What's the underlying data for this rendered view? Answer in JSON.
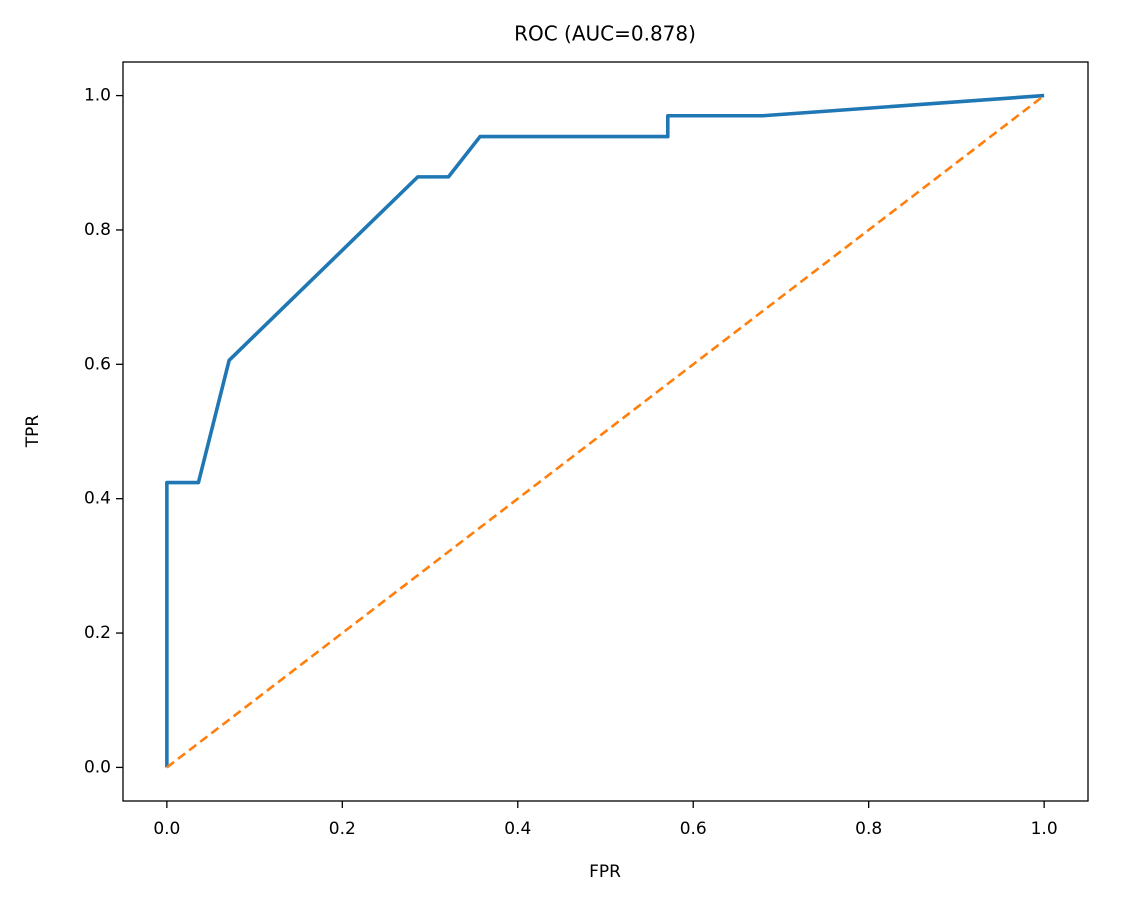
{
  "chart_data": {
    "type": "line",
    "title": "ROC (AUC=0.878)",
    "x_label": "FPR",
    "y_label": "TPR",
    "series": [
      {
        "color": "#1f77b4",
        "dash": false,
        "x": [
          0,
          0,
          0.036,
          0.071,
          0.286,
          0.321,
          0.357,
          0.571,
          0.571,
          0.679,
          1
        ],
        "values": [
          0,
          0.424,
          0.424,
          0.606,
          0.879,
          0.879,
          0.939,
          0.939,
          0.97,
          0.97,
          1
        ]
      },
      {
        "color": "#ff7f0e",
        "dash": true,
        "x": [
          0,
          1
        ],
        "values": [
          0,
          1
        ]
      }
    ],
    "xlim": [
      -0.05,
      1.05
    ],
    "ylim": [
      -0.05,
      1.05
    ],
    "xticks": [
      {
        "value": 0,
        "label": "0.0"
      },
      0.2,
      0.4,
      0.6,
      0.8,
      {
        "value": 1,
        "label": "1.0"
      }
    ],
    "yticks": [
      {
        "value": 0,
        "label": "0.0"
      },
      0.2,
      0.4,
      0.6,
      0.8,
      {
        "value": 1,
        "label": "1.0"
      }
    ],
    "grid": false
  }
}
